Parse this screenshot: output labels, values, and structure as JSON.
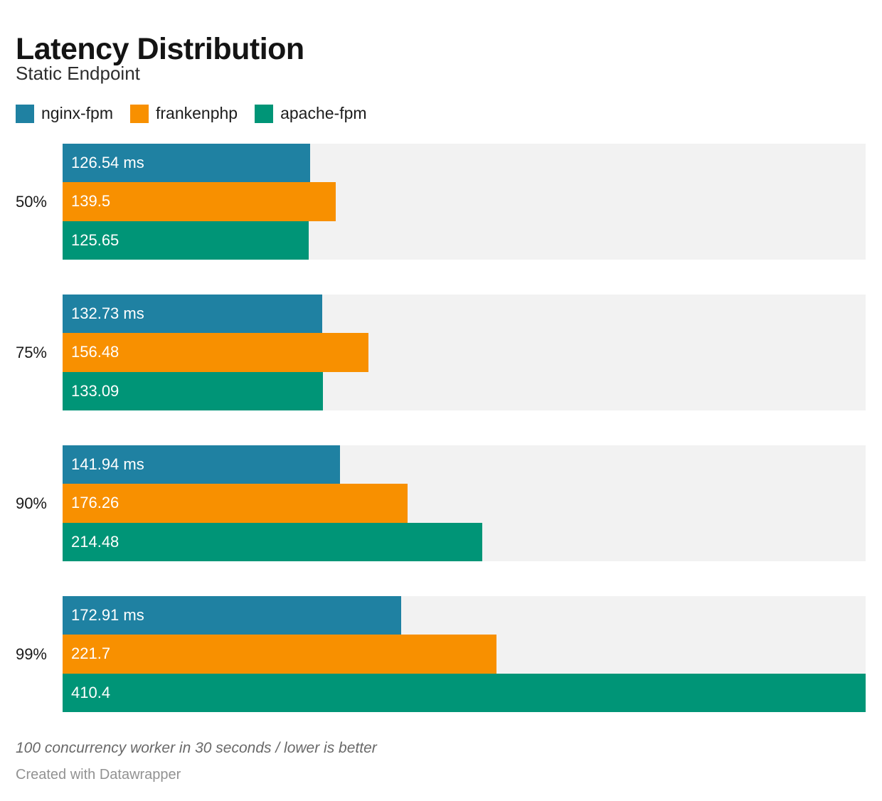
{
  "header": {
    "title": "Latency Distribution",
    "subtitle": "Static Endpoint"
  },
  "legend": [
    {
      "label": "nginx-fpm",
      "color": "#1f81a2"
    },
    {
      "label": "frankenphp",
      "color": "#f89000"
    },
    {
      "label": "apache-fpm",
      "color": "#009577"
    }
  ],
  "footer": {
    "note": "100 concurrency worker in 30 seconds / lower is better",
    "attribution": "Created with Datawrapper"
  },
  "chart_data": {
    "type": "bar",
    "orientation": "horizontal",
    "title": "Latency Distribution",
    "subtitle": "Static Endpoint",
    "categories": [
      "50%",
      "75%",
      "90%",
      "99%"
    ],
    "series": [
      {
        "name": "nginx-fpm",
        "color": "#1f81a2",
        "values": [
          126.54,
          132.73,
          141.94,
          172.91
        ],
        "labels": [
          "126.54 ms",
          "132.73 ms",
          "141.94 ms",
          "172.91 ms"
        ]
      },
      {
        "name": "frankenphp",
        "color": "#f89000",
        "values": [
          139.5,
          156.48,
          176.26,
          221.7
        ],
        "labels": [
          "139.5",
          "156.48",
          "176.26",
          "221.7"
        ]
      },
      {
        "name": "apache-fpm",
        "color": "#009577",
        "values": [
          125.65,
          133.09,
          214.48,
          410.4
        ],
        "labels": [
          "125.65",
          "133.09",
          "214.48",
          "410.4"
        ]
      }
    ],
    "value_unit": "ms",
    "xlim": [
      0,
      410.4
    ],
    "track_color": "#f2f2f2",
    "grid": false,
    "legend_position": "top",
    "note": "100 concurrency worker in 30 seconds / lower is better"
  }
}
